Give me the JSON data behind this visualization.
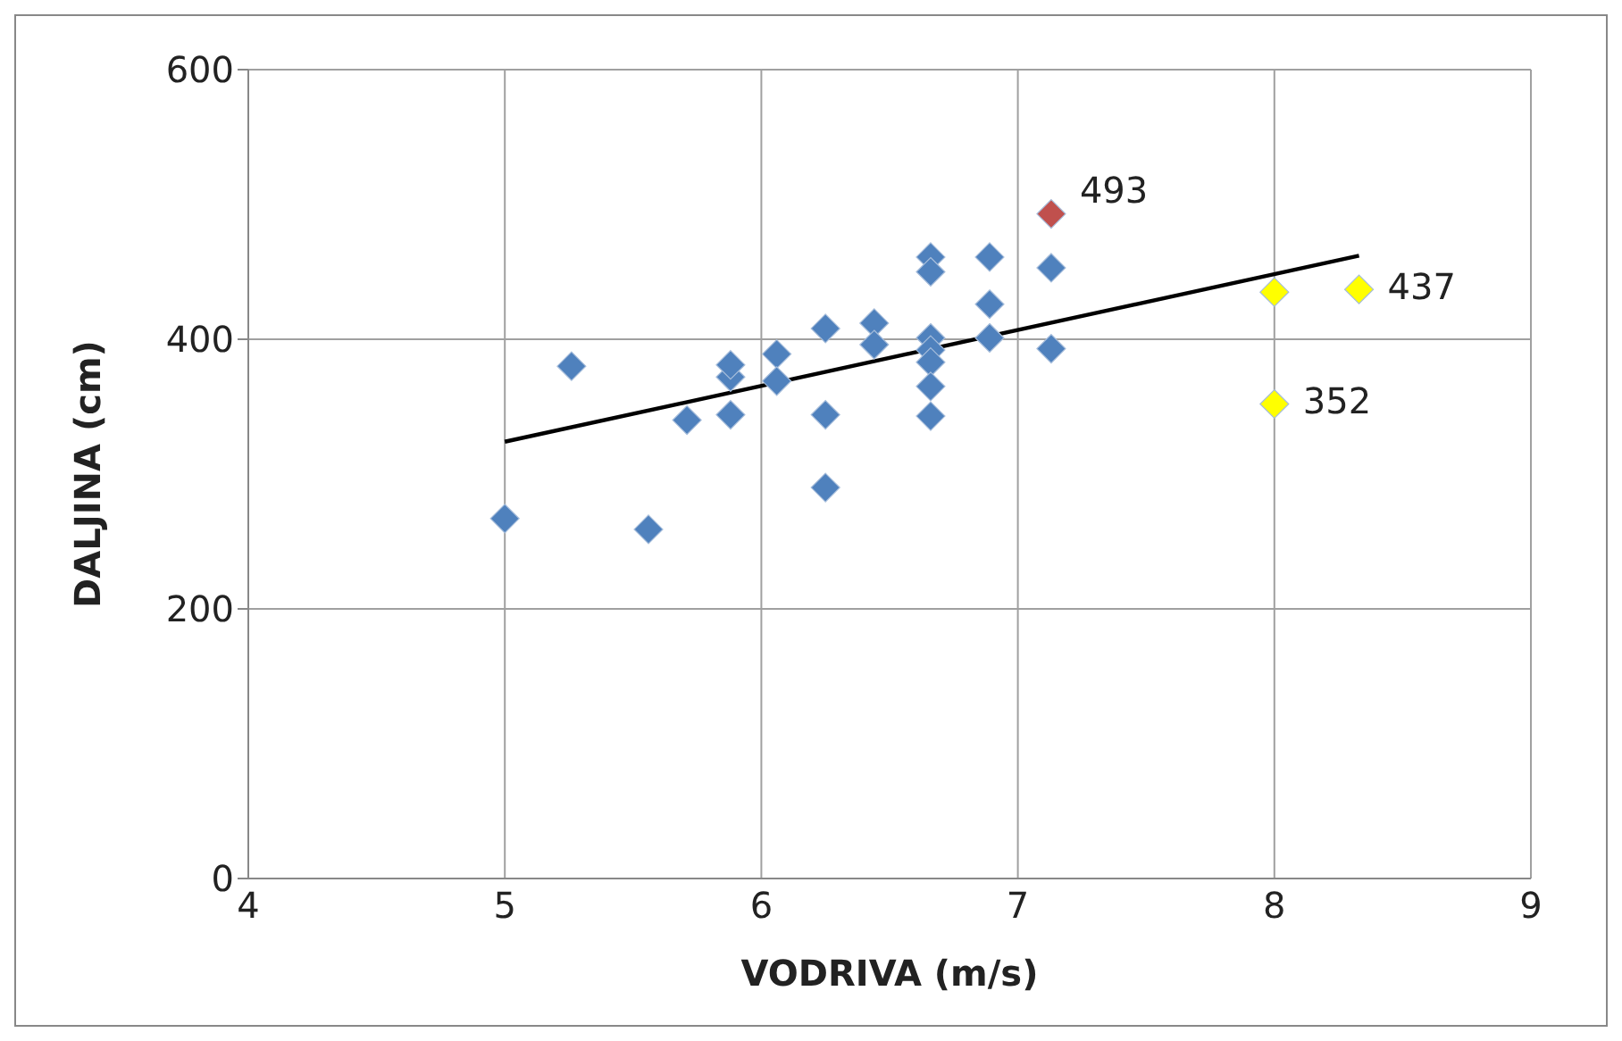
{
  "chart_data": {
    "type": "scatter",
    "xlabel": "VODRIVA (m/s)",
    "ylabel": "DALJINA (cm)",
    "xlim": [
      4,
      9
    ],
    "xticks": [
      4,
      5,
      6,
      7,
      8,
      9
    ],
    "ylim": [
      0,
      600
    ],
    "yticks": [
      0,
      200,
      400,
      600
    ],
    "grid": true,
    "legend": false,
    "marker": "diamond",
    "series": [
      {
        "color": "#4f81bd",
        "x": [
          5.0,
          5.26,
          5.56,
          5.71,
          5.88,
          5.88,
          5.88,
          6.06,
          6.06,
          6.25,
          6.25,
          6.25,
          6.44,
          6.44,
          6.66,
          6.66,
          6.66,
          6.66,
          6.66,
          6.66,
          6.66,
          6.89,
          6.89,
          6.89,
          7.13,
          7.13
        ],
        "values": [
          267,
          380,
          259,
          340,
          344,
          372,
          381,
          389,
          369,
          408,
          344,
          290,
          412,
          396,
          461,
          450,
          401,
          392,
          383,
          365,
          343,
          461,
          426,
          401,
          453,
          393
        ]
      },
      {
        "color": "#c0504d",
        "x": [
          7.13
        ],
        "values": [
          493
        ],
        "value_labels": [
          "493"
        ]
      },
      {
        "color": "#ffff00",
        "x": [
          8.0,
          8.33,
          8.0
        ],
        "values": [
          435,
          437,
          352
        ],
        "value_labels": [
          null,
          "437",
          "352"
        ]
      },
      {
        "type": "line",
        "color": "#000000",
        "marker": "none",
        "x": [
          5.0,
          8.33
        ],
        "values": [
          324,
          462
        ]
      }
    ]
  }
}
